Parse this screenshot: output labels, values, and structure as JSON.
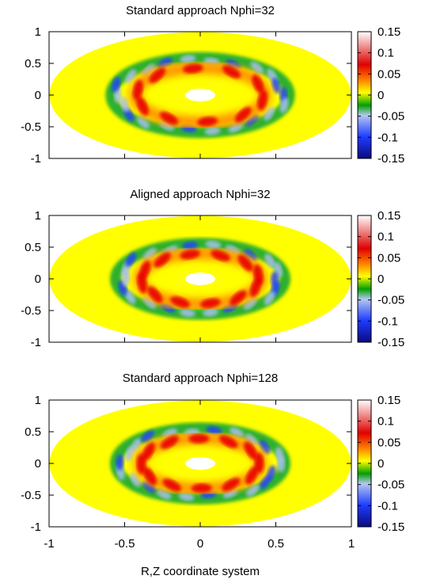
{
  "chart_data": [
    {
      "type": "heatmap",
      "title": "Standard approach Nphi=32",
      "xlim": [
        -1,
        1
      ],
      "ylim": [
        -1,
        1
      ],
      "yticks": [
        "1",
        "0.5",
        "0",
        "-0.5",
        "-1"
      ],
      "colorbar": {
        "range": [
          -0.15,
          0.15
        ],
        "ticks": [
          "0.15",
          "0.1",
          "0.05",
          "0",
          "-0.05",
          "-0.1",
          "-0.15"
        ],
        "colors": [
          "#0a0a80",
          "#1e3cff",
          "#b4c8f0",
          "#00a000",
          "#ffff00",
          "#ff8000",
          "#e00000",
          "#ffffff"
        ]
      },
      "domain": "annulus: outer radius 1.0, hole radius ~0.1 at center",
      "features": {
        "ring_radius": 0.45,
        "positive_lobes": 10,
        "negative_bands": true,
        "amplitude": 0.12
      }
    },
    {
      "type": "heatmap",
      "title": "Aligned approach Nphi=32",
      "xlim": [
        -1,
        1
      ],
      "ylim": [
        -1,
        1
      ],
      "yticks": [
        "1",
        "0.5",
        "0",
        "-0.5",
        "-1"
      ],
      "colorbar": {
        "range": [
          -0.15,
          0.15
        ],
        "ticks": [
          "0.15",
          "0.1",
          "0.05",
          "0",
          "-0.05",
          "-0.1",
          "-0.15"
        ]
      },
      "features": {
        "ring_radius": 0.42,
        "positive_lobes": 12,
        "negative_bands": true,
        "amplitude": 0.09
      }
    },
    {
      "type": "heatmap",
      "title": "Standard approach Nphi=128",
      "xlim": [
        -1,
        1
      ],
      "ylim": [
        -1,
        1
      ],
      "yticks": [
        "1",
        "0.5",
        "0",
        "-0.5",
        "-1"
      ],
      "xticks": [
        "-1",
        "-0.5",
        "0",
        "0.5",
        "1"
      ],
      "xlabel": "R,Z coordinate system",
      "colorbar": {
        "range": [
          -0.15,
          0.15
        ],
        "ticks": [
          "0.15",
          "0.1",
          "0.05",
          "0",
          "-0.05",
          "-0.1",
          "-0.15"
        ]
      },
      "features": {
        "ring_radius": 0.42,
        "positive_lobes": 12,
        "negative_bands": true,
        "amplitude": 0.09
      }
    }
  ]
}
